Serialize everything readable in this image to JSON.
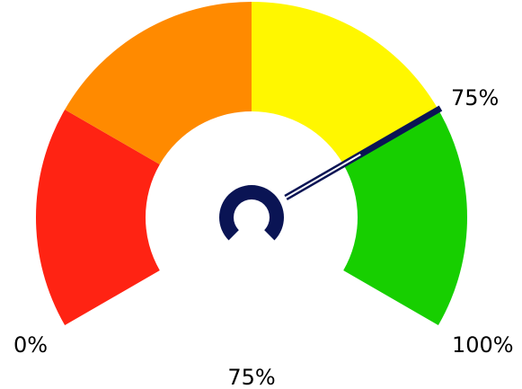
{
  "chart_data": {
    "type": "gauge",
    "value": 75,
    "min": 0,
    "max": 100,
    "arc_degrees": 240,
    "segments": [
      {
        "from": 0,
        "to": 25,
        "color": "#ff2313"
      },
      {
        "from": 25,
        "to": 50,
        "color": "#ff8a00"
      },
      {
        "from": 50,
        "to": 75,
        "color": "#fff700"
      },
      {
        "from": 75,
        "to": 100,
        "color": "#17cf00"
      }
    ],
    "needle_color": "#0a1454",
    "labels": {
      "min": "0%",
      "max": "100%",
      "pointer": "75%",
      "value": "75%"
    }
  }
}
